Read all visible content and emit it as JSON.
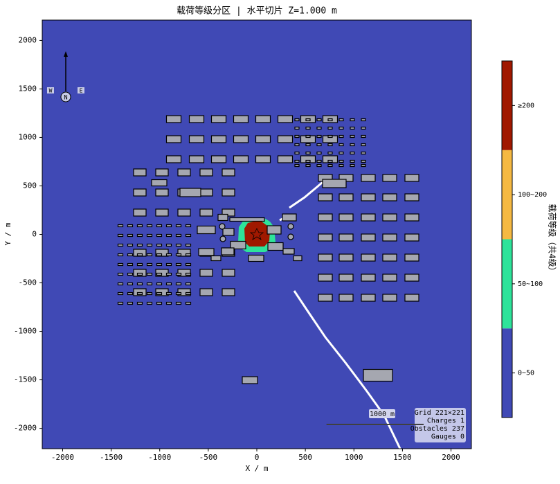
{
  "chart_data": {
    "type": "map",
    "title": "载荷等级分区  |  水平切片 Z=1.000 m",
    "xlabel": "X / m",
    "ylabel": "Y / m",
    "xlim": [
      -2210,
      2210
    ],
    "ylim": [
      -2210,
      2210
    ],
    "xticks": [
      -2000,
      -1500,
      -1000,
      -500,
      0,
      500,
      1000,
      1500,
      2000
    ],
    "yticks": [
      -2000,
      -1500,
      -1000,
      -500,
      0,
      500,
      1000,
      1500,
      2000
    ],
    "background": "#4049b5",
    "colorbar": {
      "label": "载荷等级（共4级）",
      "levels": [
        {
          "label": "0~50",
          "color": "#4049b5"
        },
        {
          "label": "50~100",
          "color": "#2ee39a"
        },
        {
          "label": "100~200",
          "color": "#f5b942"
        },
        {
          "label": "≥200",
          "color": "#a01800"
        }
      ]
    },
    "compass": {
      "north": "N",
      "west": "W",
      "east": "E"
    },
    "scale_bar": {
      "length": 1000,
      "label": "1000 m"
    },
    "info": [
      "Grid 221×221",
      "Charges 1",
      "Obstacles 237",
      "Gauges 0"
    ]
  }
}
